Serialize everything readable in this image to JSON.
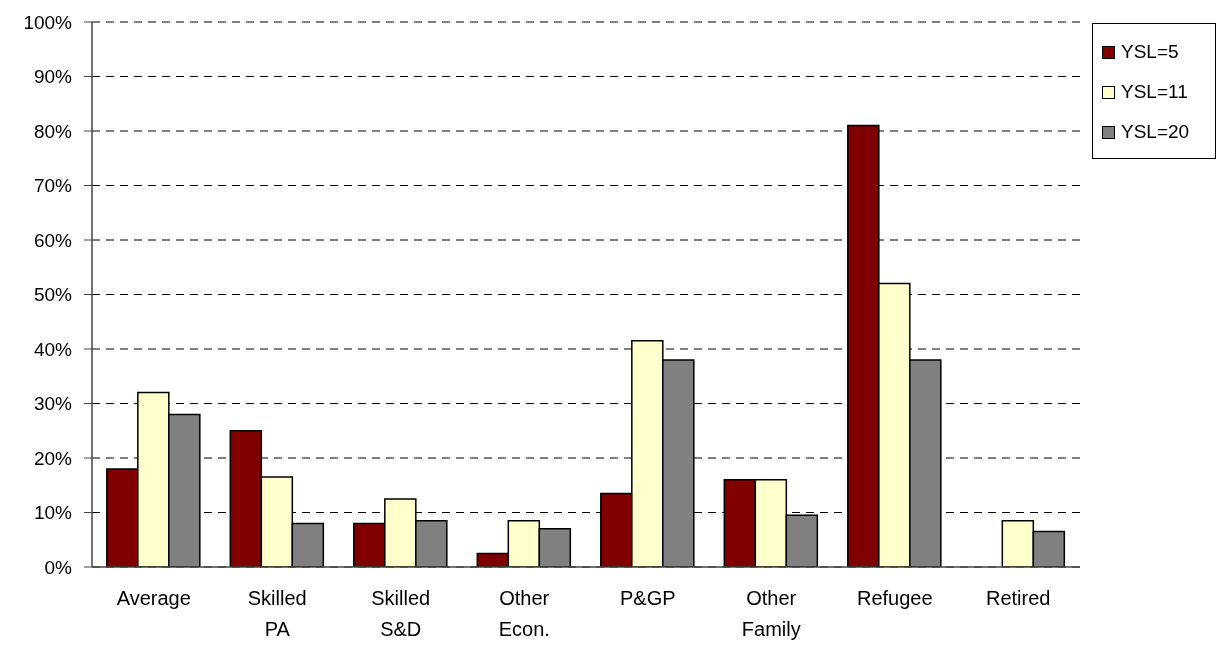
{
  "chart_data": {
    "type": "bar",
    "categories": [
      "Average",
      "Skilled PA",
      "Skilled S&D",
      "Other Econ.",
      "P&GP",
      "Other Family",
      "Refugee",
      "Retired"
    ],
    "series": [
      {
        "name": "YSL=5",
        "color": "#800000",
        "values": [
          18,
          25,
          8,
          2.5,
          13.5,
          16,
          81,
          null
        ]
      },
      {
        "name": "YSL=11",
        "color": "#ffffcc",
        "values": [
          32,
          16.5,
          12.5,
          8.5,
          41.5,
          16,
          52,
          8.5
        ]
      },
      {
        "name": "YSL=20",
        "color": "#808080",
        "values": [
          28,
          8,
          8.5,
          7,
          38,
          9.5,
          38,
          6.5
        ]
      }
    ],
    "ylim": [
      0,
      100
    ],
    "yticks": [
      {
        "value": 0,
        "label": "0%"
      },
      {
        "value": 10,
        "label": "10%"
      },
      {
        "value": 20,
        "label": "20%"
      },
      {
        "value": 30,
        "label": "30%"
      },
      {
        "value": 40,
        "label": "40%"
      },
      {
        "value": 50,
        "label": "50%"
      },
      {
        "value": 60,
        "label": "60%"
      },
      {
        "value": 70,
        "label": "70%"
      },
      {
        "value": 80,
        "label": "80%"
      },
      {
        "value": 90,
        "label": "90%"
      },
      {
        "value": 100,
        "label": "100%"
      }
    ],
    "grid": "y",
    "legend": "top right"
  }
}
